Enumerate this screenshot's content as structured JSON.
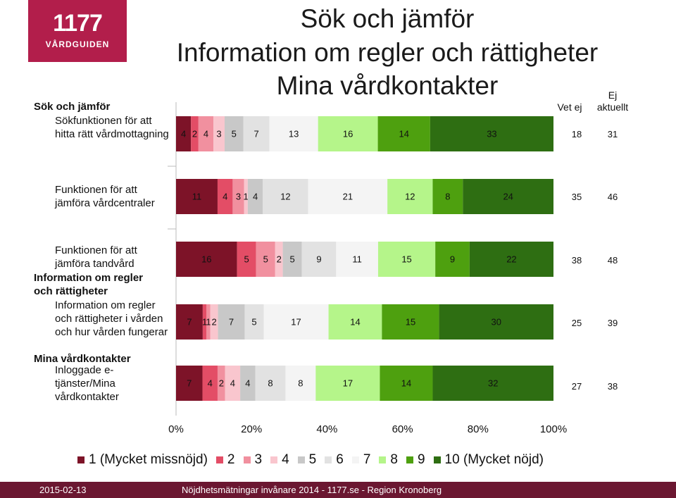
{
  "logo": {
    "number": "1177",
    "brand": "VÅRDGUIDEN"
  },
  "titles": [
    "Sök och jämför",
    "Information om regler och rättigheter",
    "Mina vårdkontakter"
  ],
  "row_labels": [
    {
      "text": "Sök och jämför",
      "level": 1
    },
    {
      "text": "Sökfunktionen för att hitta rätt vårdmottagning",
      "level": 2
    },
    {
      "text": "Funktionen för att jämföra vårdcentraler",
      "level": 2
    },
    {
      "text": "Funktionen för att jämföra tandvård",
      "level": 2
    },
    {
      "text": "Information om regler och rättigheter",
      "level": 1
    },
    {
      "text": "Information om regler och rättigheter i vården och hur vården fungerar",
      "level": 2
    },
    {
      "text": "Mina vårdkontakter",
      "level": 1
    },
    {
      "text": "Inloggade e-tjänster/Mina vårdkontakter",
      "level": 2
    }
  ],
  "extra_columns": {
    "headers": [
      "Vet ej",
      "Ej aktuellt"
    ],
    "values": [
      [
        "18",
        "31"
      ],
      [
        "35",
        "46"
      ],
      [
        "38",
        "48"
      ],
      [
        "25",
        "39"
      ],
      [
        "27",
        "38"
      ]
    ]
  },
  "chart_data": {
    "type": "bar",
    "orientation": "horizontal",
    "stacked": true,
    "categories": [
      "Sökfunktionen för att hitta rätt vårdmottagning",
      "Funktionen för att jämföra vårdcentraler",
      "Funktionen för att jämföra tandvård",
      "Information om regler och rättigheter i vården och hur vården fungerar",
      "Inloggade e-tjänster/Mina vårdkontakter"
    ],
    "series": [
      {
        "name": "1 (Mycket missnöjd)",
        "color": "#7d1328",
        "values": [
          4,
          11,
          16,
          7,
          7
        ]
      },
      {
        "name": "2",
        "color": "#e34d66",
        "values": [
          2,
          4,
          5,
          1,
          4
        ]
      },
      {
        "name": "3",
        "color": "#f1909f",
        "values": [
          4,
          3,
          5,
          1,
          2
        ]
      },
      {
        "name": "4",
        "color": "#f9c6ce",
        "values": [
          3,
          1,
          2,
          2,
          4
        ]
      },
      {
        "name": "5",
        "color": "#c8c8c8",
        "values": [
          5,
          4,
          5,
          7,
          4
        ]
      },
      {
        "name": "6",
        "color": "#e2e2e2",
        "values": [
          7,
          12,
          9,
          5,
          8
        ]
      },
      {
        "name": "7",
        "color": "#f4f4f4",
        "values": [
          13,
          21,
          11,
          17,
          8
        ]
      },
      {
        "name": "8",
        "color": "#b5f58a",
        "values": [
          16,
          12,
          15,
          14,
          17
        ]
      },
      {
        "name": "9",
        "color": "#4ea00f",
        "values": [
          14,
          8,
          9,
          15,
          14
        ]
      },
      {
        "name": "10 (Mycket nöjd)",
        "color": "#2e6e12",
        "values": [
          33,
          24,
          22,
          30,
          32
        ]
      }
    ],
    "xlim": [
      0,
      100
    ],
    "x_ticks": [
      "0%",
      "20%",
      "40%",
      "60%",
      "80%",
      "100%"
    ],
    "legend": "bottom"
  },
  "footer": {
    "date": "2015-02-13",
    "text": "Nöjdhetsmätningar invånare 2014 - 1177.se - Region Kronoberg"
  }
}
